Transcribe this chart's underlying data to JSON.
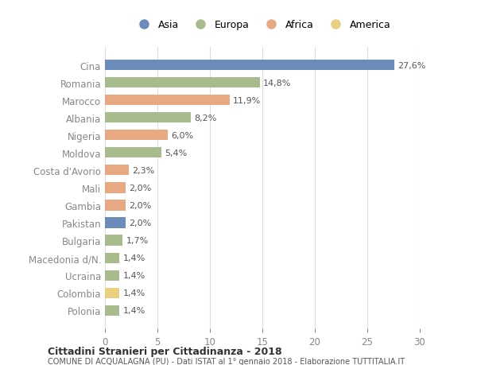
{
  "countries": [
    "Cina",
    "Romania",
    "Marocco",
    "Albania",
    "Nigeria",
    "Moldova",
    "Costa d'Avorio",
    "Mali",
    "Gambia",
    "Pakistan",
    "Bulgaria",
    "Macedonia d/N.",
    "Ucraina",
    "Colombia",
    "Polonia"
  ],
  "values": [
    27.6,
    14.8,
    11.9,
    8.2,
    6.0,
    5.4,
    2.3,
    2.0,
    2.0,
    2.0,
    1.7,
    1.4,
    1.4,
    1.4,
    1.4
  ],
  "labels": [
    "27,6%",
    "14,8%",
    "11,9%",
    "8,2%",
    "6,0%",
    "5,4%",
    "2,3%",
    "2,0%",
    "2,0%",
    "2,0%",
    "1,7%",
    "1,4%",
    "1,4%",
    "1,4%",
    "1,4%"
  ],
  "continents": [
    "Asia",
    "Europa",
    "Africa",
    "Europa",
    "Africa",
    "Europa",
    "Africa",
    "Africa",
    "Africa",
    "Asia",
    "Europa",
    "Europa",
    "Europa",
    "America",
    "Europa"
  ],
  "colors": {
    "Asia": "#6b8cba",
    "Europa": "#a8bb8c",
    "Africa": "#e8a882",
    "America": "#e8d080"
  },
  "legend_order": [
    "Asia",
    "Europa",
    "Africa",
    "America"
  ],
  "title1": "Cittadini Stranieri per Cittadinanza - 2018",
  "title2": "COMUNE DI ACQUALAGNA (PU) - Dati ISTAT al 1° gennaio 2018 - Elaborazione TUTTITALIA.IT",
  "xlim": [
    0,
    30
  ],
  "xticks": [
    0,
    5,
    10,
    15,
    20,
    25,
    30
  ],
  "bg_color": "#ffffff",
  "grid_color": "#dddddd"
}
